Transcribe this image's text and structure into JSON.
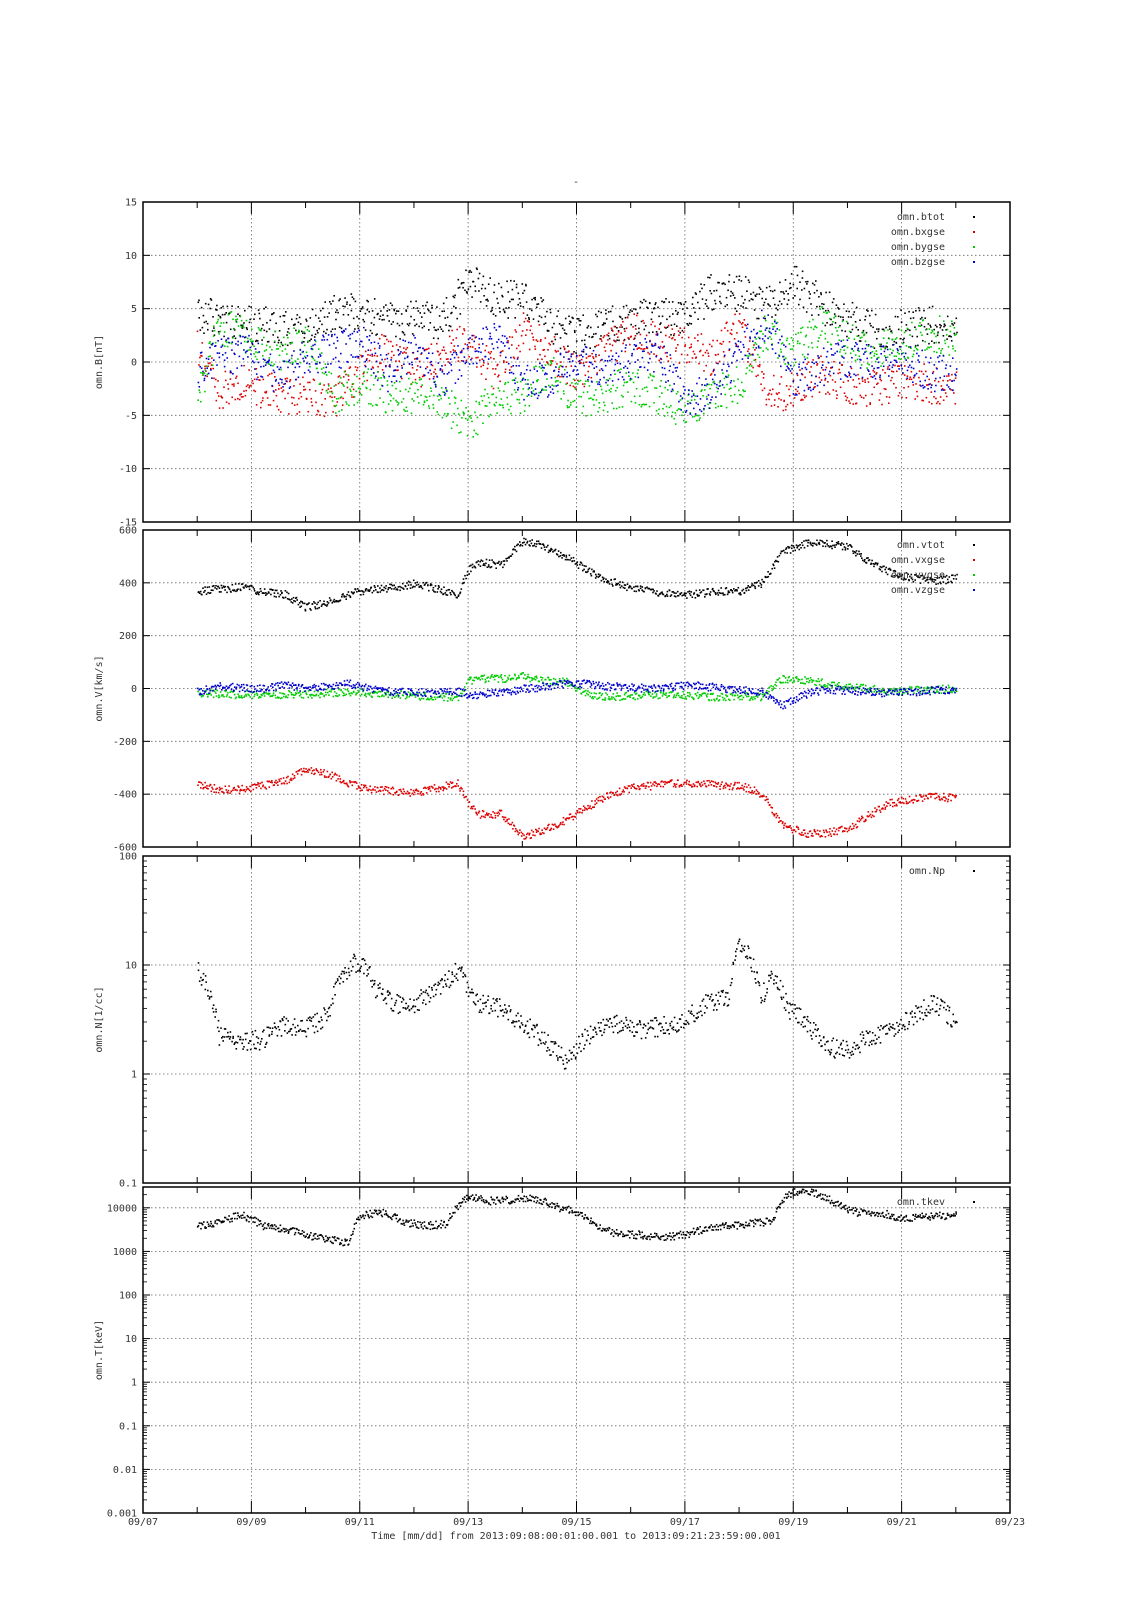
{
  "figure": {
    "title": "-",
    "time_axis_label": "Time [mm/dd]  from 2013:09:08:00:01:00.001  to  2013:09:21:23:59:00.001",
    "x_tick_labels": [
      "09/07",
      "09/09",
      "09/11",
      "09/13",
      "09/15",
      "09/17",
      "09/19",
      "09/21",
      "09/23"
    ]
  },
  "colors": {
    "btot": "#000000",
    "bxgse": "#dd0000",
    "bygse": "#00cc00",
    "bzgse": "#0000cc",
    "vtot": "#000000",
    "vxgse": "#dd0000",
    "vygse": "#00cc00",
    "vzgse": "#0000cc",
    "Np": "#000000",
    "tkev": "#000000"
  },
  "chart_data": [
    {
      "type": "scatter",
      "panel": "B",
      "ylabel": "omn.B[nT]",
      "ylim": [
        -15,
        15
      ],
      "yscale": "linear",
      "y_ticks": [
        -15,
        -10,
        -5,
        0,
        5,
        10,
        15
      ],
      "xlim": [
        "09/07",
        "09/23"
      ],
      "x_unit": "day-of-September",
      "grid": true,
      "legend_placement": "top-right",
      "series": [
        {
          "name": "omn.btot",
          "key": "btot",
          "x": [
            8.0,
            8.4,
            8.9,
            9.5,
            10.0,
            10.5,
            11.0,
            11.5,
            12.0,
            12.5,
            13.0,
            13.5,
            14.0,
            14.5,
            15.0,
            15.5,
            16.0,
            16.5,
            17.0,
            17.5,
            18.0,
            18.5,
            19.0,
            19.5,
            20.0,
            20.5,
            21.0,
            21.5,
            22.0
          ],
          "y": [
            4.5,
            4.2,
            3.5,
            3.4,
            3.2,
            4.5,
            5.0,
            3.8,
            4.0,
            3.8,
            7.5,
            6.0,
            6.0,
            3.5,
            2.5,
            3.5,
            4.0,
            4.5,
            4.0,
            6.8,
            6.5,
            5.5,
            7.5,
            5.5,
            4.0,
            3.0,
            3.2,
            3.5,
            3.8
          ]
        },
        {
          "name": "omn.bxgse",
          "key": "bxgse",
          "x": [
            8.0,
            8.4,
            8.9,
            9.5,
            10.0,
            10.5,
            11.0,
            11.5,
            12.0,
            12.5,
            13.0,
            13.5,
            14.0,
            14.5,
            15.0,
            15.5,
            16.0,
            16.5,
            17.0,
            17.5,
            18.0,
            18.5,
            19.0,
            19.5,
            20.0,
            20.5,
            21.0,
            21.5,
            22.0
          ],
          "y": [
            1.5,
            -2.5,
            -2.0,
            -3.0,
            -3.0,
            -3.5,
            -1.0,
            1.5,
            -1.0,
            1.0,
            2.0,
            -1.0,
            3.0,
            1.0,
            -1.0,
            1.0,
            3.0,
            2.0,
            1.5,
            0.5,
            3.5,
            -3.0,
            -2.5,
            -1.0,
            -2.0,
            -2.5,
            -1.5,
            -2.0,
            -2.5
          ]
        },
        {
          "name": "omn.bygse",
          "key": "bygse",
          "x": [
            8.0,
            8.4,
            8.9,
            9.5,
            10.0,
            10.5,
            11.0,
            11.5,
            12.0,
            12.5,
            13.0,
            13.5,
            14.0,
            14.5,
            15.0,
            15.5,
            16.0,
            16.5,
            17.0,
            17.5,
            18.0,
            18.5,
            19.0,
            19.5,
            20.0,
            20.5,
            21.0,
            21.5,
            22.0
          ],
          "y": [
            -3.0,
            3.5,
            2.5,
            1.0,
            2.0,
            -3.0,
            -2.0,
            -3.0,
            -3.0,
            -3.5,
            -6.0,
            -3.0,
            -3.0,
            -1.0,
            -3.5,
            -3.0,
            -2.0,
            -3.0,
            -4.5,
            -3.0,
            -2.0,
            3.0,
            1.0,
            3.5,
            2.0,
            1.0,
            2.0,
            3.0,
            2.0
          ]
        },
        {
          "name": "omn.bzgse",
          "key": "bzgse",
          "x": [
            8.0,
            8.4,
            8.9,
            9.5,
            10.0,
            10.5,
            11.0,
            11.5,
            12.0,
            12.5,
            13.0,
            13.5,
            14.0,
            14.5,
            15.0,
            15.5,
            16.0,
            16.5,
            17.0,
            17.5,
            18.0,
            18.5,
            19.0,
            19.5,
            20.0,
            20.5,
            21.0,
            21.5,
            22.0
          ],
          "y": [
            -1.0,
            0.5,
            1.0,
            -1.5,
            0.5,
            1.0,
            2.0,
            -1.0,
            1.5,
            -2.0,
            1.0,
            2.5,
            -2.0,
            -1.5,
            0.5,
            -0.5,
            0.0,
            1.0,
            -3.5,
            -2.5,
            1.0,
            4.0,
            -1.5,
            -0.5,
            0.5,
            0.0,
            0.5,
            -1.0,
            -1.0
          ]
        }
      ]
    },
    {
      "type": "scatter",
      "panel": "V",
      "ylabel": "omn.V[km/s]",
      "ylim": [
        -600,
        600
      ],
      "yscale": "linear",
      "y_ticks": [
        -600,
        -400,
        -200,
        0,
        200,
        400,
        600
      ],
      "xlim": [
        "09/07",
        "09/23"
      ],
      "grid": true,
      "legend_placement": "top-right",
      "series": [
        {
          "name": "omn.vtot",
          "key": "vtot",
          "x": [
            8.0,
            8.4,
            8.8,
            9.2,
            9.6,
            10.0,
            10.4,
            10.8,
            11.2,
            11.6,
            12.0,
            12.4,
            12.8,
            13.0,
            13.2,
            13.6,
            14.0,
            14.4,
            14.8,
            15.2,
            15.6,
            16.0,
            16.4,
            16.8,
            17.2,
            17.6,
            18.0,
            18.4,
            18.8,
            19.2,
            19.6,
            20.0,
            20.4,
            20.8,
            21.2,
            21.6,
            22.0
          ],
          "y": [
            370,
            380,
            385,
            370,
            360,
            310,
            330,
            360,
            380,
            385,
            400,
            380,
            360,
            450,
            480,
            470,
            560,
            540,
            500,
            450,
            410,
            380,
            370,
            360,
            360,
            370,
            370,
            400,
            520,
            550,
            550,
            540,
            480,
            440,
            420,
            410,
            420
          ]
        },
        {
          "name": "omn.vxgse",
          "key": "vxgse",
          "x": [
            8.0,
            8.4,
            8.8,
            9.2,
            9.6,
            10.0,
            10.4,
            10.8,
            11.2,
            11.6,
            12.0,
            12.4,
            12.8,
            13.0,
            13.2,
            13.6,
            14.0,
            14.4,
            14.8,
            15.2,
            15.6,
            16.0,
            16.4,
            16.8,
            17.2,
            17.6,
            18.0,
            18.4,
            18.8,
            19.2,
            19.6,
            20.0,
            20.4,
            20.8,
            21.2,
            21.6,
            22.0
          ],
          "y": [
            -360,
            -380,
            -380,
            -365,
            -350,
            -305,
            -320,
            -360,
            -380,
            -385,
            -395,
            -375,
            -355,
            -440,
            -475,
            -470,
            -560,
            -530,
            -495,
            -445,
            -400,
            -375,
            -365,
            -355,
            -355,
            -365,
            -365,
            -395,
            -515,
            -545,
            -545,
            -530,
            -475,
            -430,
            -415,
            -405,
            -415
          ]
        },
        {
          "name": "omn.vygse",
          "key": "vygse",
          "x": [
            8.0,
            8.4,
            8.8,
            9.2,
            9.6,
            10.0,
            10.4,
            10.8,
            11.2,
            11.6,
            12.0,
            12.4,
            12.8,
            13.0,
            13.2,
            13.6,
            14.0,
            14.4,
            14.8,
            15.2,
            15.6,
            16.0,
            16.4,
            16.8,
            17.2,
            17.6,
            18.0,
            18.4,
            18.8,
            19.2,
            19.6,
            20.0,
            20.4,
            20.8,
            21.2,
            21.6,
            22.0
          ],
          "y": [
            -15,
            -20,
            -20,
            -25,
            -20,
            -20,
            -15,
            -10,
            -15,
            -20,
            -25,
            -30,
            -30,
            30,
            40,
            40,
            50,
            30,
            30,
            -20,
            -30,
            -25,
            -20,
            -20,
            -25,
            -30,
            -25,
            -30,
            40,
            35,
            20,
            10,
            5,
            -10,
            -5,
            0,
            0
          ]
        },
        {
          "name": "omn.vzgse",
          "key": "vzgse",
          "x": [
            8.0,
            8.4,
            8.8,
            9.2,
            9.6,
            10.0,
            10.4,
            10.8,
            11.2,
            11.6,
            12.0,
            12.4,
            12.8,
            13.0,
            13.2,
            13.6,
            14.0,
            14.4,
            14.8,
            15.2,
            15.6,
            16.0,
            16.4,
            16.8,
            17.2,
            17.6,
            18.0,
            18.4,
            18.8,
            19.2,
            19.6,
            20.0,
            20.4,
            20.8,
            21.2,
            21.6,
            22.0
          ],
          "y": [
            -10,
            10,
            5,
            0,
            15,
            5,
            10,
            20,
            0,
            -10,
            -10,
            -15,
            -10,
            -20,
            -20,
            -10,
            0,
            10,
            20,
            20,
            10,
            5,
            5,
            10,
            15,
            5,
            0,
            -10,
            -60,
            -20,
            0,
            -5,
            -10,
            -15,
            -10,
            -5,
            0
          ]
        }
      ]
    },
    {
      "type": "scatter",
      "panel": "N",
      "ylabel": "omn.N[1/cc]",
      "ylim": [
        0.1,
        100
      ],
      "yscale": "log",
      "y_ticks": [
        0.1,
        1,
        10,
        100
      ],
      "y_tick_labels": [
        "0.1",
        "1",
        "10",
        "100"
      ],
      "xlim": [
        "09/07",
        "09/23"
      ],
      "grid": true,
      "legend_placement": "top-right",
      "series": [
        {
          "name": "omn.Np",
          "key": "Np",
          "x": [
            8.0,
            8.2,
            8.4,
            8.8,
            9.2,
            9.6,
            10.0,
            10.4,
            10.8,
            11.0,
            11.3,
            11.6,
            12.0,
            12.4,
            12.8,
            13.0,
            13.2,
            13.6,
            14.0,
            14.4,
            14.8,
            15.0,
            15.4,
            15.8,
            16.2,
            16.6,
            17.0,
            17.4,
            17.8,
            18.0,
            18.4,
            18.6,
            18.9,
            19.2,
            19.6,
            20.0,
            20.4,
            20.8,
            21.2,
            21.6,
            22.0
          ],
          "y": [
            9,
            6,
            2.2,
            2.0,
            2.1,
            2.8,
            2.6,
            3.5,
            10,
            11,
            6,
            4.5,
            4.5,
            6,
            9,
            6,
            4.5,
            4,
            3,
            2,
            1.3,
            1.8,
            2.8,
            3,
            2.6,
            2.8,
            3.2,
            4.5,
            5,
            17,
            5,
            8,
            4,
            3,
            1.8,
            1.7,
            2.2,
            2.5,
            3.5,
            4.5,
            3
          ]
        }
      ]
    },
    {
      "type": "scatter",
      "panel": "T",
      "ylabel": "omn.T[keV]",
      "ylim": [
        0.001,
        30000
      ],
      "yscale": "log",
      "y_ticks": [
        0.001,
        0.01,
        0.1,
        1,
        10,
        100,
        1000,
        10000
      ],
      "y_tick_labels": [
        "0.001",
        "0.01",
        "0.1",
        "1",
        "10",
        "100",
        "1000",
        "10000"
      ],
      "xlim": [
        "09/07",
        "09/23"
      ],
      "grid": true,
      "legend_placement": "top-right",
      "series": [
        {
          "name": "omn.tkev",
          "key": "tkev",
          "x": [
            8.0,
            8.4,
            8.8,
            9.2,
            9.6,
            10.0,
            10.4,
            10.8,
            11.0,
            11.4,
            11.8,
            12.2,
            12.6,
            13.0,
            13.4,
            13.8,
            14.2,
            14.6,
            15.0,
            15.4,
            15.8,
            16.2,
            16.6,
            17.0,
            17.4,
            17.8,
            18.2,
            18.6,
            19.0,
            19.4,
            19.8,
            20.2,
            20.6,
            21.0,
            21.4,
            21.8,
            22.0
          ],
          "y": [
            4000,
            5000,
            7000,
            4000,
            3500,
            2500,
            2000,
            1500,
            7000,
            8000,
            5000,
            4000,
            4500,
            18000,
            15000,
            16000,
            17000,
            11000,
            8000,
            3500,
            2500,
            2500,
            2200,
            2500,
            3500,
            4000,
            4500,
            5000,
            25000,
            22000,
            12000,
            8000,
            8000,
            6000,
            6500,
            7000,
            7000
          ]
        }
      ]
    }
  ]
}
